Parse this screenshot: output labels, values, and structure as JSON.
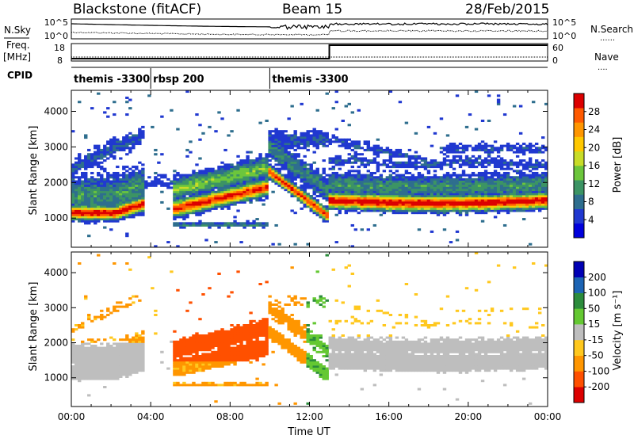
{
  "header": {
    "station": "Blackstone (fitACF)",
    "beam": "Beam 15",
    "date": "28/Feb/2015"
  },
  "side_labels": {
    "nsky": "N.Sky",
    "freq_line1": "Freq.",
    "freq_line2": "[MHz]",
    "cpid": "CPID",
    "nsearch": "N.Search",
    "nsearch_dots": "......",
    "nave": "Nave",
    "nave_dots": "...."
  },
  "noise_panel": {
    "left_ticks": [
      "10^5",
      "10^0"
    ],
    "right_ticks": [
      "10^5",
      "10^0"
    ]
  },
  "freq_panel": {
    "left_ticks": [
      "18",
      "8"
    ],
    "right_ticks": [
      "60",
      "0"
    ],
    "freq_step_time_hours": 13.0
  },
  "cpid_panel": {
    "segments": [
      {
        "label": "themis -3300",
        "start_hour": 0.0
      },
      {
        "label": "rbsp 200",
        "start_hour": 4.0
      },
      {
        "label": "themis -3300",
        "start_hour": 10.0
      }
    ]
  },
  "colors": {
    "ground_scatter": "#bebebe"
  },
  "chart_data": [
    {
      "type": "heatmap",
      "name": "power",
      "ylabel": "Slant Range [km]",
      "xlabel": "",
      "xlim": [
        0,
        24
      ],
      "ylim": [
        180,
        4590
      ],
      "y_ticks": [
        "1000",
        "2000",
        "3000",
        "4000"
      ],
      "colorbar": {
        "label": "Power [dB]",
        "ticks": [
          "28",
          "24",
          "20",
          "16",
          "12",
          "8",
          "4"
        ],
        "range": [
          0,
          30
        ],
        "colors": [
          "#0000dc",
          "#2038d0",
          "#2e6e8e",
          "#3c9464",
          "#6cc63c",
          "#c8dc28",
          "#ffc800",
          "#ff9600",
          "#ff5a00",
          "#dc0000"
        ]
      }
    },
    {
      "type": "heatmap",
      "name": "velocity",
      "ylabel": "Slant Range [km]",
      "xlabel": "Time UT",
      "xlim": [
        0,
        24
      ],
      "ylim": [
        180,
        4590
      ],
      "y_ticks": [
        "1000",
        "2000",
        "3000",
        "4000"
      ],
      "x_ticks": [
        "00:00",
        "04:00",
        "08:00",
        "12:00",
        "16:00",
        "20:00",
        "00:00"
      ],
      "colorbar": {
        "label": "Velocity [m s⁻¹]",
        "ticks": [
          "200",
          "100",
          "50",
          "15",
          "-15",
          "-50",
          "-100",
          "-200"
        ],
        "colors": [
          "#0000b4",
          "#1c64b4",
          "#2c8c3c",
          "#64c832",
          "#bebebe",
          "#ffc81e",
          "#ff9600",
          "#ff5000",
          "#dc0000"
        ]
      }
    }
  ]
}
